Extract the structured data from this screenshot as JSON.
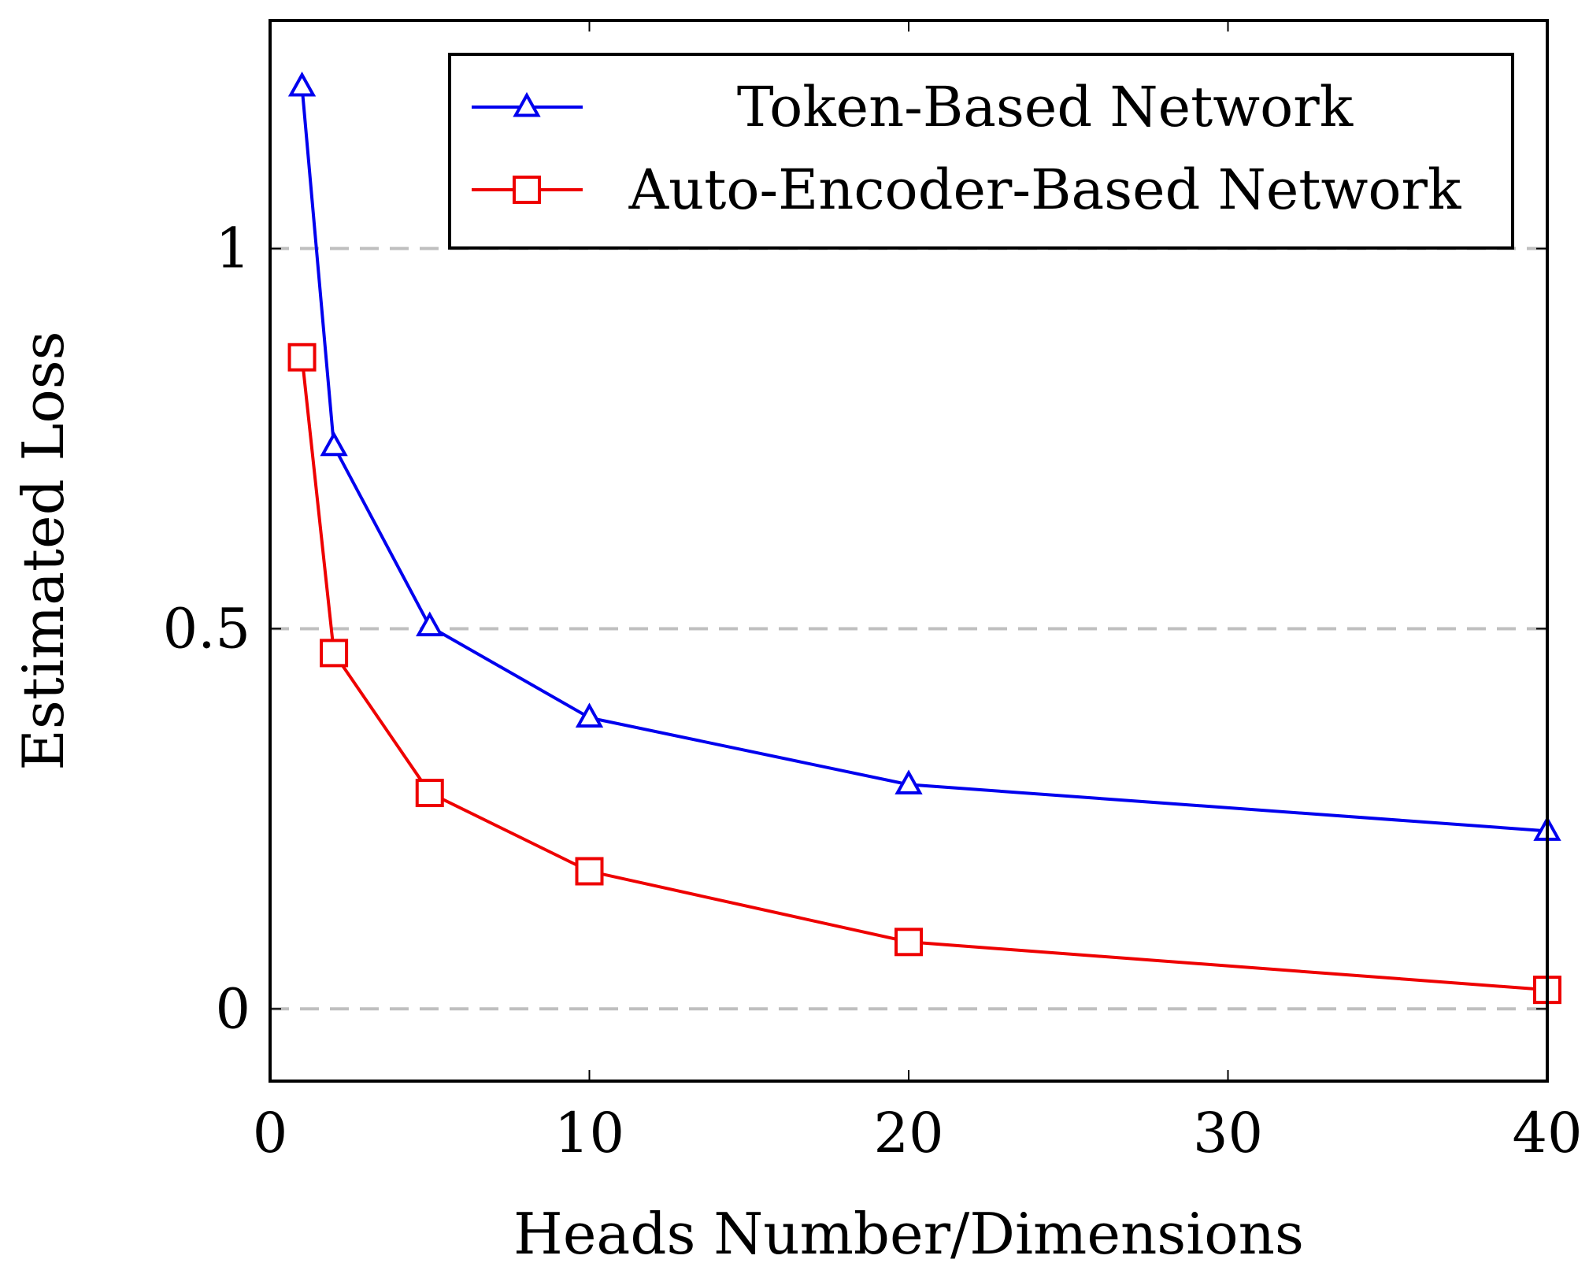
{
  "chart_data": {
    "type": "line",
    "xlabel": "Heads Number/Dimensions",
    "ylabel": "Estimated Loss",
    "xlim": [
      0,
      40
    ],
    "ylim": [
      -0.095,
      1.3
    ],
    "xticks": [
      0,
      10,
      20,
      30,
      40
    ],
    "yticks": [
      0,
      0.5,
      1
    ],
    "xtick_labels": [
      "0",
      "10",
      "20",
      "30",
      "40"
    ],
    "ytick_labels": [
      "0",
      "0.5",
      "1"
    ],
    "grid": "horizontal dashed",
    "legend_position": "top-right",
    "x": [
      1,
      2,
      5,
      10,
      20,
      40
    ],
    "series": [
      {
        "name": "Token-Based Network",
        "color": "#0000ee",
        "marker": "triangle",
        "values": [
          1.213,
          0.74,
          0.503,
          0.383,
          0.295,
          0.234
        ]
      },
      {
        "name": "Auto-Encoder-Based Network",
        "color": "#ee0000",
        "marker": "square",
        "values": [
          0.857,
          0.468,
          0.284,
          0.181,
          0.088,
          0.025
        ]
      }
    ]
  }
}
